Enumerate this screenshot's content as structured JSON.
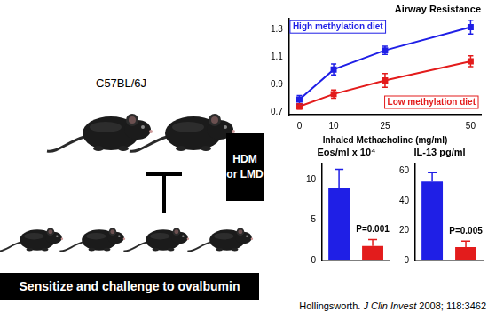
{
  "chart_data": [
    {
      "type": "line",
      "title": "Airway Resistance",
      "x_label": "Inhaled Methacholine (mg/ml)",
      "x": [
        0,
        10,
        25,
        50
      ],
      "series": [
        {
          "name": "High methylation diet",
          "color": "#1f1fe6",
          "marker": "square",
          "values": [
            0.79,
            1.01,
            1.15,
            1.32
          ],
          "errors": [
            0.03,
            0.04,
            0.03,
            0.05
          ]
        },
        {
          "name": "Low methylation diet",
          "color": "#e31c1c",
          "marker": "square",
          "values": [
            0.74,
            0.83,
            0.93,
            1.07
          ],
          "errors": [
            0.02,
            0.03,
            0.05,
            0.04
          ]
        }
      ],
      "xlim": [
        -3,
        53
      ],
      "xticks": [
        0,
        10,
        25,
        50
      ],
      "ylim": [
        0.68,
        1.38
      ],
      "yticks": [
        0.7,
        0.9,
        1.1,
        1.3
      ],
      "grid": false
    },
    {
      "type": "bar",
      "title": "Eos/ml x 10⁴",
      "categories": [
        null,
        null
      ],
      "values": [
        9,
        1.8
      ],
      "errors": [
        2.3,
        0.8
      ],
      "colors": [
        "#1f1fe6",
        "#e31c1c"
      ],
      "ylim": [
        0,
        12
      ],
      "yticks": [
        0,
        5,
        10
      ],
      "annotations": [
        {
          "text": "P=0.001"
        }
      ],
      "tick_labels": "y",
      "grid": false
    },
    {
      "type": "bar",
      "title": "IL-13 pg/ml",
      "categories": [
        null,
        null
      ],
      "values": [
        53,
        9
      ],
      "errors": [
        6,
        4
      ],
      "colors": [
        "#1f1fe6",
        "#e31c1c"
      ],
      "ylim": [
        0,
        65
      ],
      "yticks": [
        0,
        20,
        40,
        60
      ],
      "annotations": [
        {
          "text": "P=0.005"
        }
      ],
      "tick_labels": "y",
      "grid": false
    }
  ],
  "diagram": {
    "strain": "C57BL/6J",
    "diet": "HDM or LMD",
    "protocol": "Sensitize and challenge to ovalbumin",
    "citation": {
      "author": "Hollingsworth.",
      "journal": "J Clin Invest",
      "reference": "2008; 118:3462"
    }
  }
}
